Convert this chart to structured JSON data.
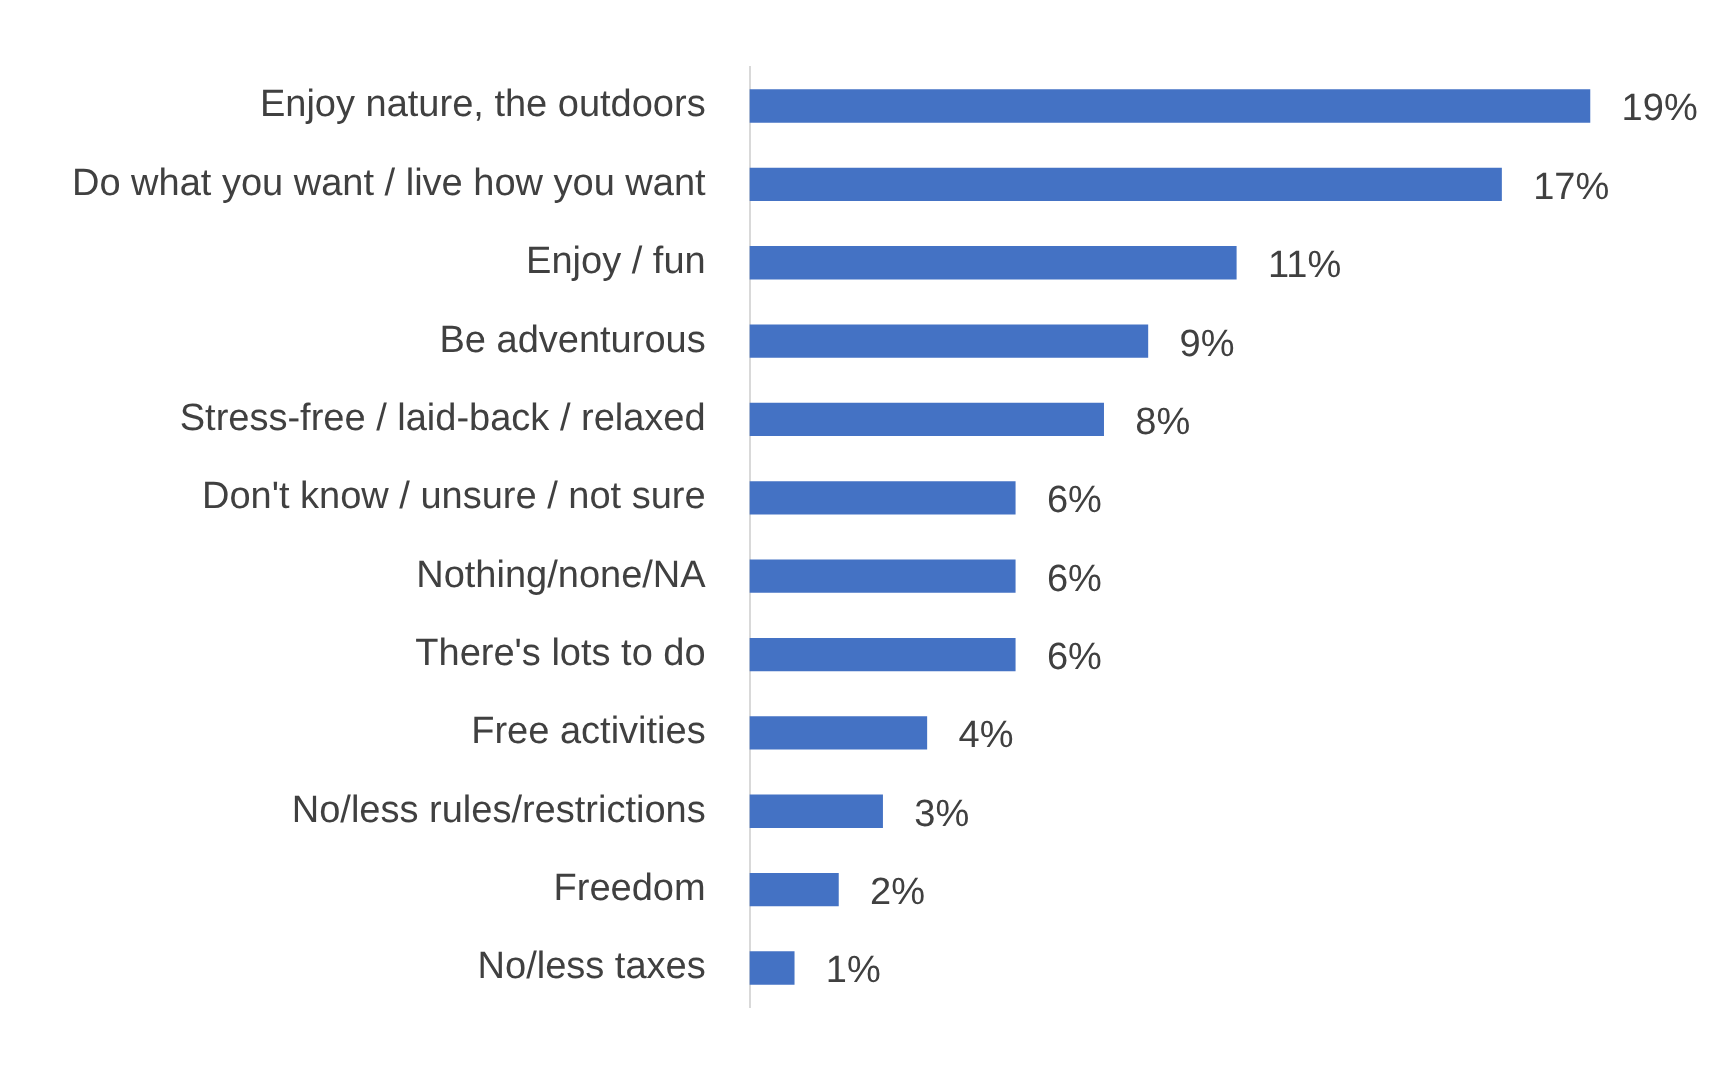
{
  "chart_data": {
    "type": "bar",
    "orientation": "horizontal",
    "categories": [
      "Enjoy nature, the outdoors",
      "Do what you want / live how you want",
      "Enjoy / fun",
      "Be adventurous",
      "Stress-free / laid-back / relaxed",
      "Don't know / unsure / not sure",
      "Nothing/none/NA",
      "There's lots to do",
      "Free activities",
      "No/less rules/restrictions",
      "Freedom",
      "No/less taxes"
    ],
    "values": [
      19,
      17,
      11,
      9,
      8,
      6,
      6,
      6,
      4,
      3,
      2,
      1
    ],
    "value_labels": [
      "19%",
      "17%",
      "11%",
      "9%",
      "8%",
      "6%",
      "6%",
      "6%",
      "4%",
      "3%",
      "2%",
      "1%"
    ],
    "color": "#4472c4"
  }
}
